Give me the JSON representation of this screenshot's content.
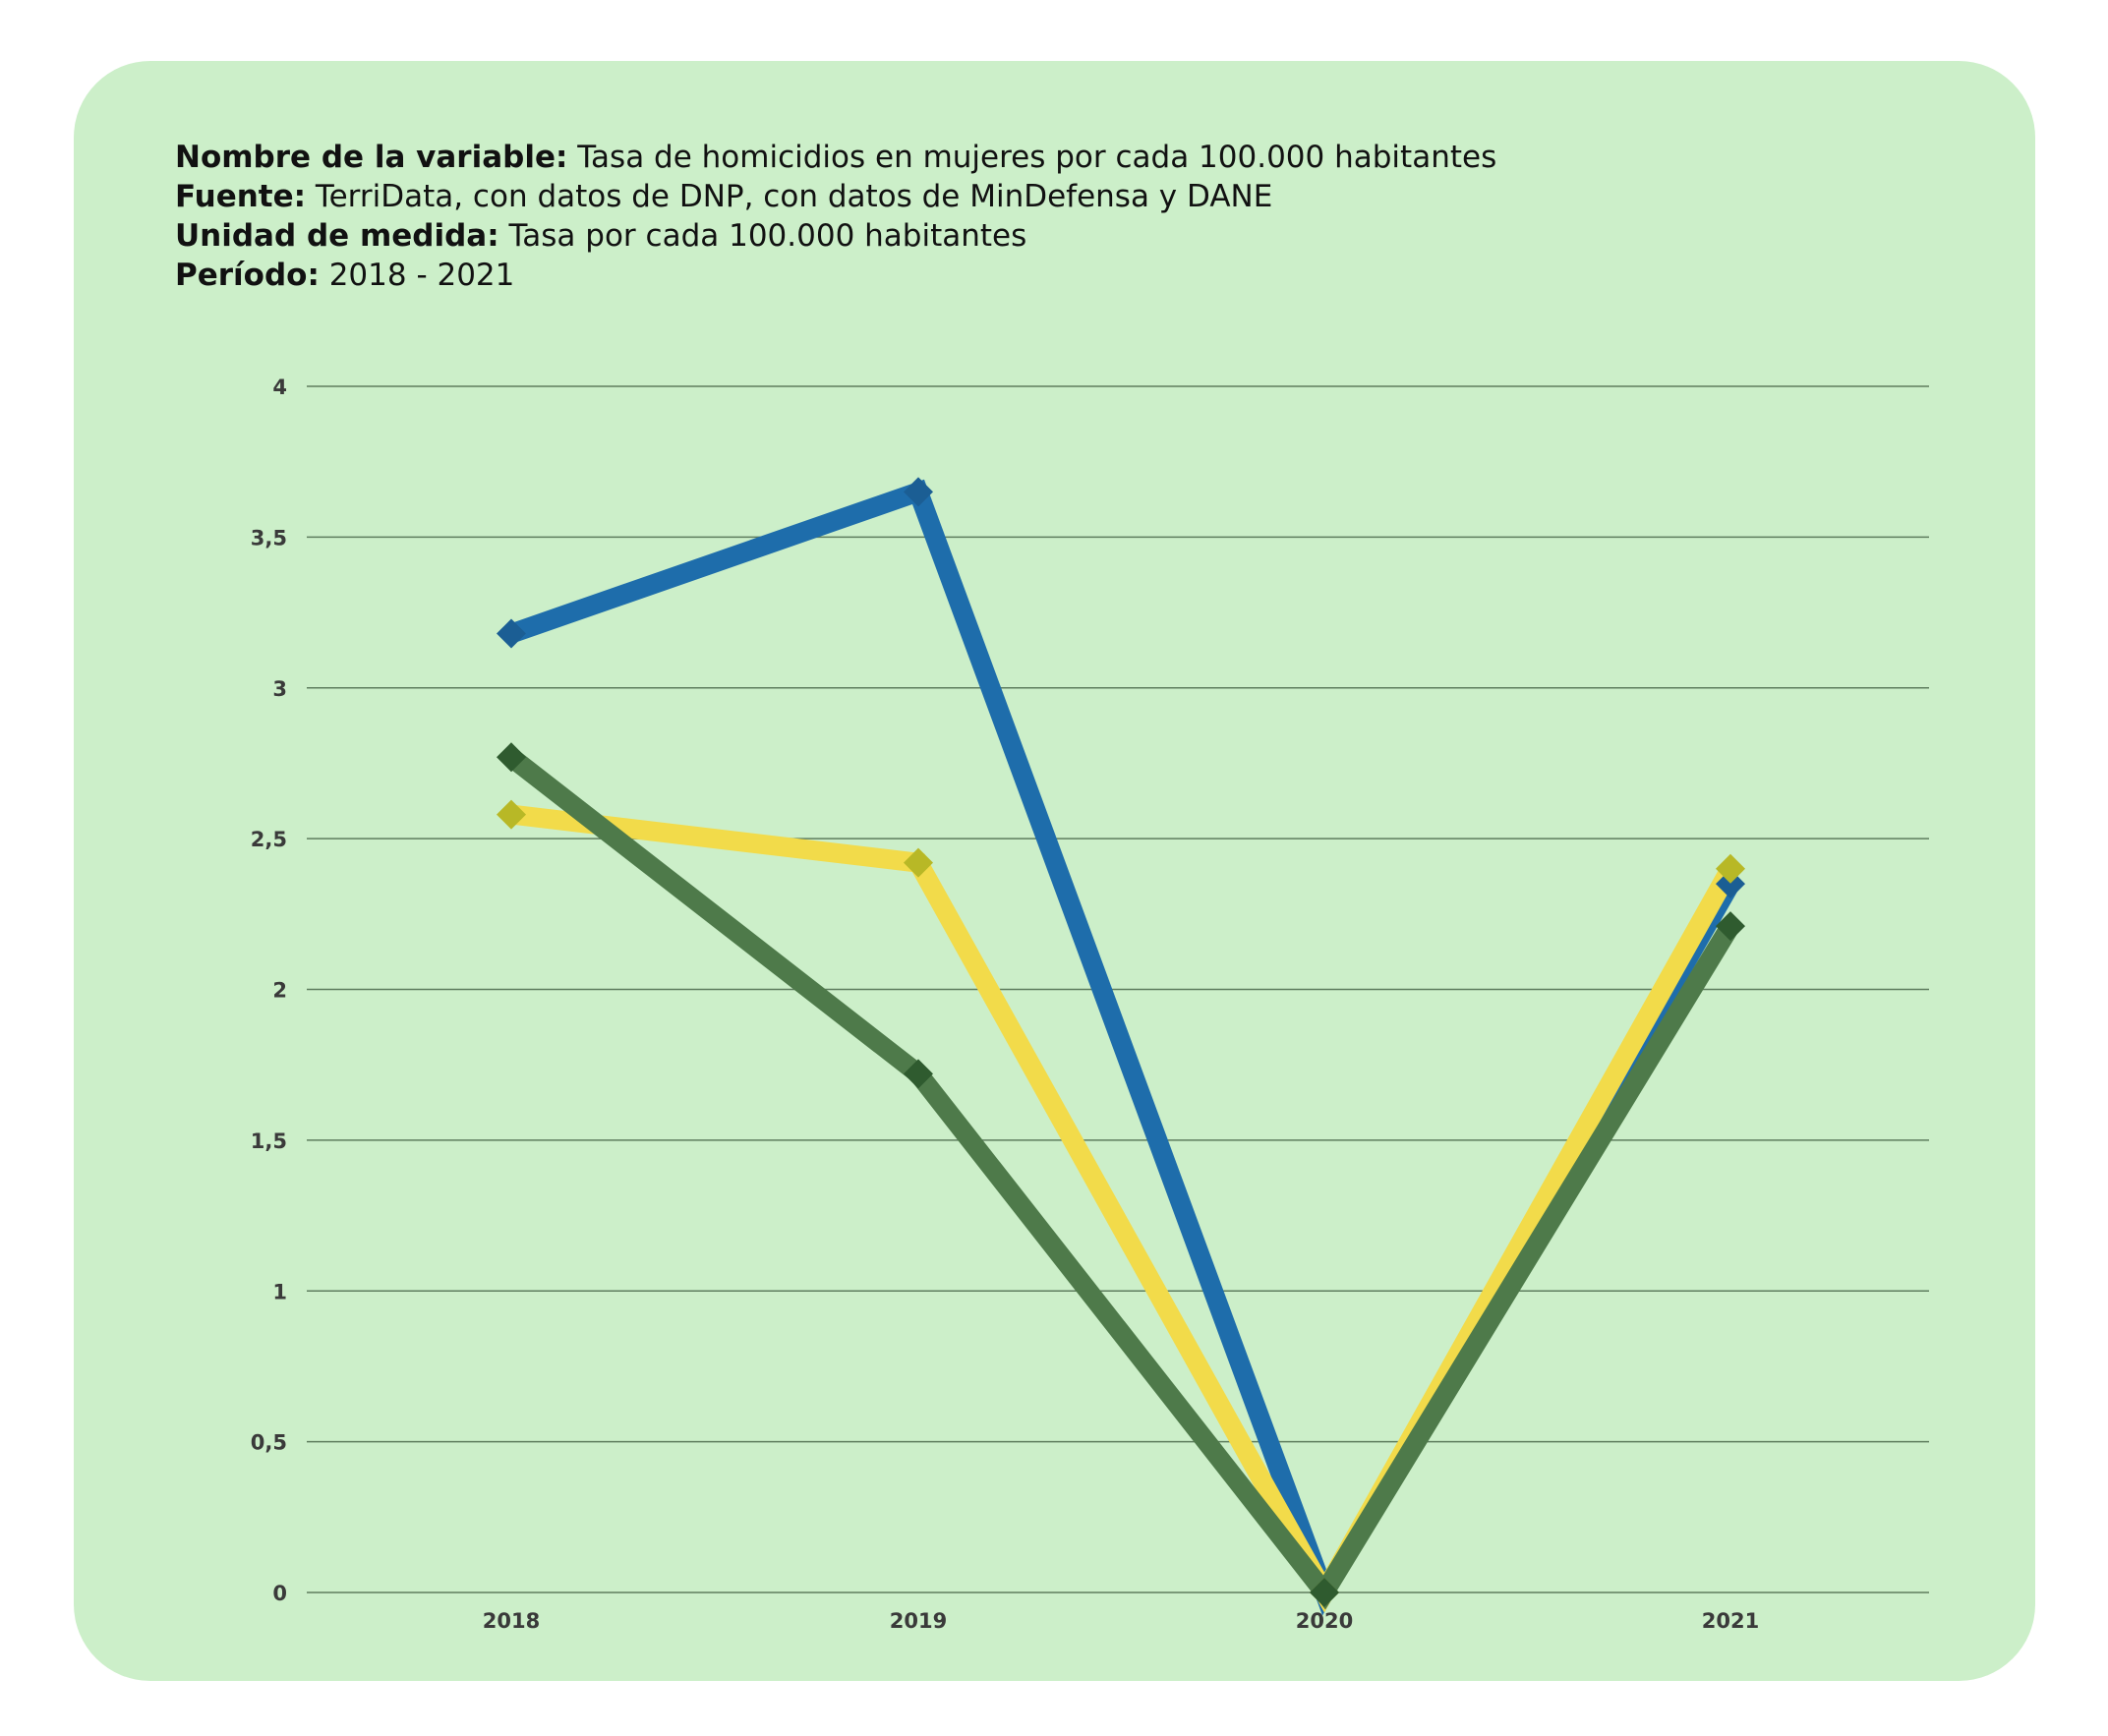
{
  "header": {
    "variable_key": "Nombre de la variable:",
    "variable_value": "Tasa de homicidios en mujeres por cada 100.000 habitantes",
    "source_key": "Fuente:",
    "source_value": "TerriData, con datos de DNP,  con datos de MinDefensa y DANE",
    "unit_key": "Unidad de medida:",
    "unit_value": "Tasa por cada 100.000 habitantes",
    "period_key": "Período:",
    "period_value": "2018 - 2021"
  },
  "colors": {
    "background": "#ccefc9",
    "gridline": "#5e7d5e"
  },
  "chart_data": {
    "type": "line",
    "title": "",
    "xlabel": "",
    "ylabel": "",
    "categories": [
      "2018",
      "2019",
      "2020",
      "2021"
    ],
    "ylim": [
      0,
      4
    ],
    "yticks": [
      0,
      0.5,
      1,
      1.5,
      2,
      2.5,
      3,
      3.5,
      4
    ],
    "ytick_labels": [
      "0",
      "0,5",
      "1",
      "1,5",
      "2",
      "2,5",
      "3",
      "3,5",
      "4"
    ],
    "grid": true,
    "legend": "none",
    "series": [
      {
        "values": [
          3.18,
          3.65,
          0,
          2.35
        ],
        "color": "#1e6dab",
        "marker_color": "#1b5e94"
      },
      {
        "values": [
          2.58,
          2.42,
          0,
          2.4
        ],
        "color": "#f2db4a",
        "marker_color": "#b8b826"
      },
      {
        "values": [
          2.77,
          1.72,
          0,
          2.21
        ],
        "color": "#4e7a4a",
        "marker_color": "#2f5b2f"
      }
    ]
  }
}
